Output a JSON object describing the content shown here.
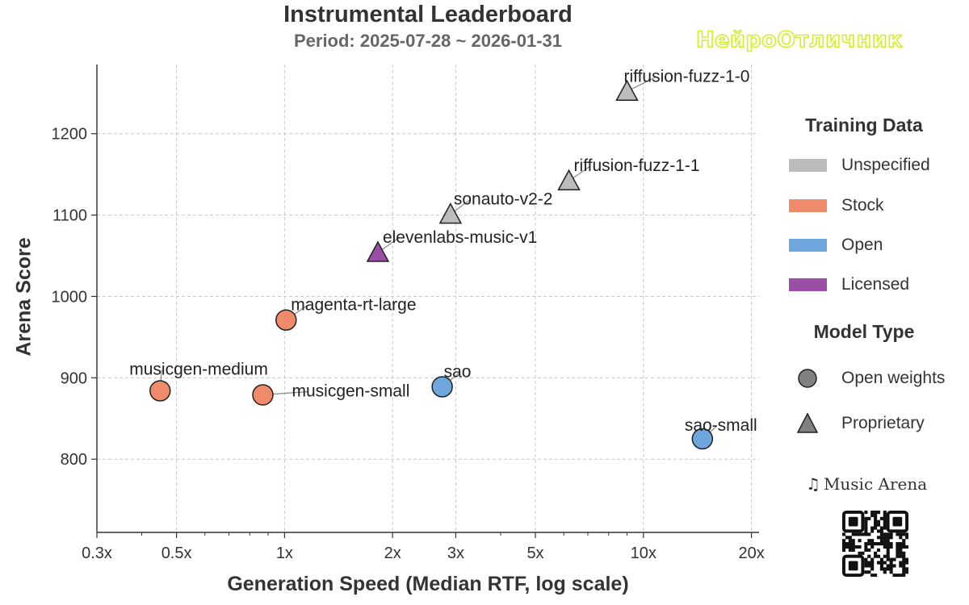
{
  "chart_data": {
    "type": "scatter",
    "title": "Instrumental Leaderboard",
    "subtitle": "Period: 2025-07-28 ~ 2026-01-31",
    "xlabel": "Generation Speed (Median RTF, log scale)",
    "ylabel": "Arena Score",
    "x_scale": "log",
    "xlim": [
      0.3,
      21
    ],
    "ylim": [
      710,
      1285
    ],
    "x_ticks": [
      {
        "value": 0.3,
        "label": "0.3x"
      },
      {
        "value": 0.5,
        "label": "0.5x"
      },
      {
        "value": 1,
        "label": "1x"
      },
      {
        "value": 2,
        "label": "2x"
      },
      {
        "value": 3,
        "label": "3x"
      },
      {
        "value": 5,
        "label": "5x"
      },
      {
        "value": 10,
        "label": "10x"
      },
      {
        "value": 20,
        "label": "20x"
      }
    ],
    "y_ticks": [
      800,
      900,
      1000,
      1100,
      1200
    ],
    "grid": true,
    "points": [
      {
        "name": "riffusion-fuzz-1-0",
        "x": 9.0,
        "y": 1252,
        "training": "Unspecified",
        "model_type": "Proprietary"
      },
      {
        "name": "riffusion-fuzz-1-1",
        "x": 6.2,
        "y": 1142,
        "training": "Unspecified",
        "model_type": "Proprietary"
      },
      {
        "name": "sonauto-v2-2",
        "x": 2.9,
        "y": 1101,
        "training": "Unspecified",
        "model_type": "Proprietary"
      },
      {
        "name": "elevenlabs-music-v1",
        "x": 1.82,
        "y": 1054,
        "training": "Licensed",
        "model_type": "Proprietary"
      },
      {
        "name": "magenta-rt-large",
        "x": 1.01,
        "y": 971,
        "training": "Stock",
        "model_type": "Open weights"
      },
      {
        "name": "musicgen-medium",
        "x": 0.45,
        "y": 884,
        "training": "Stock",
        "model_type": "Open weights"
      },
      {
        "name": "musicgen-small",
        "x": 0.87,
        "y": 879,
        "training": "Stock",
        "model_type": "Open weights"
      },
      {
        "name": "sao",
        "x": 2.75,
        "y": 889,
        "training": "Open",
        "model_type": "Open weights"
      },
      {
        "name": "sao-small",
        "x": 14.6,
        "y": 825,
        "training": "Open",
        "model_type": "Open weights"
      }
    ],
    "legend": {
      "placement": "right",
      "training_title": "Training Data",
      "training": [
        {
          "label": "Unspecified",
          "color": "#bcbcbc"
        },
        {
          "label": "Stock",
          "color": "#ef8a6a"
        },
        {
          "label": "Open",
          "color": "#6fa6de"
        },
        {
          "label": "Licensed",
          "color": "#9b4ea6"
        }
      ],
      "type_title": "Model Type",
      "types": [
        {
          "label": "Open weights",
          "marker": "circle",
          "color": "#808080"
        },
        {
          "label": "Proprietary",
          "marker": "triangle",
          "color": "#808080"
        }
      ]
    }
  },
  "branding": {
    "watermark": "НейроОтличник",
    "music_arena": "Music Arena",
    "music_arena_icon": "music-notes-icon"
  }
}
